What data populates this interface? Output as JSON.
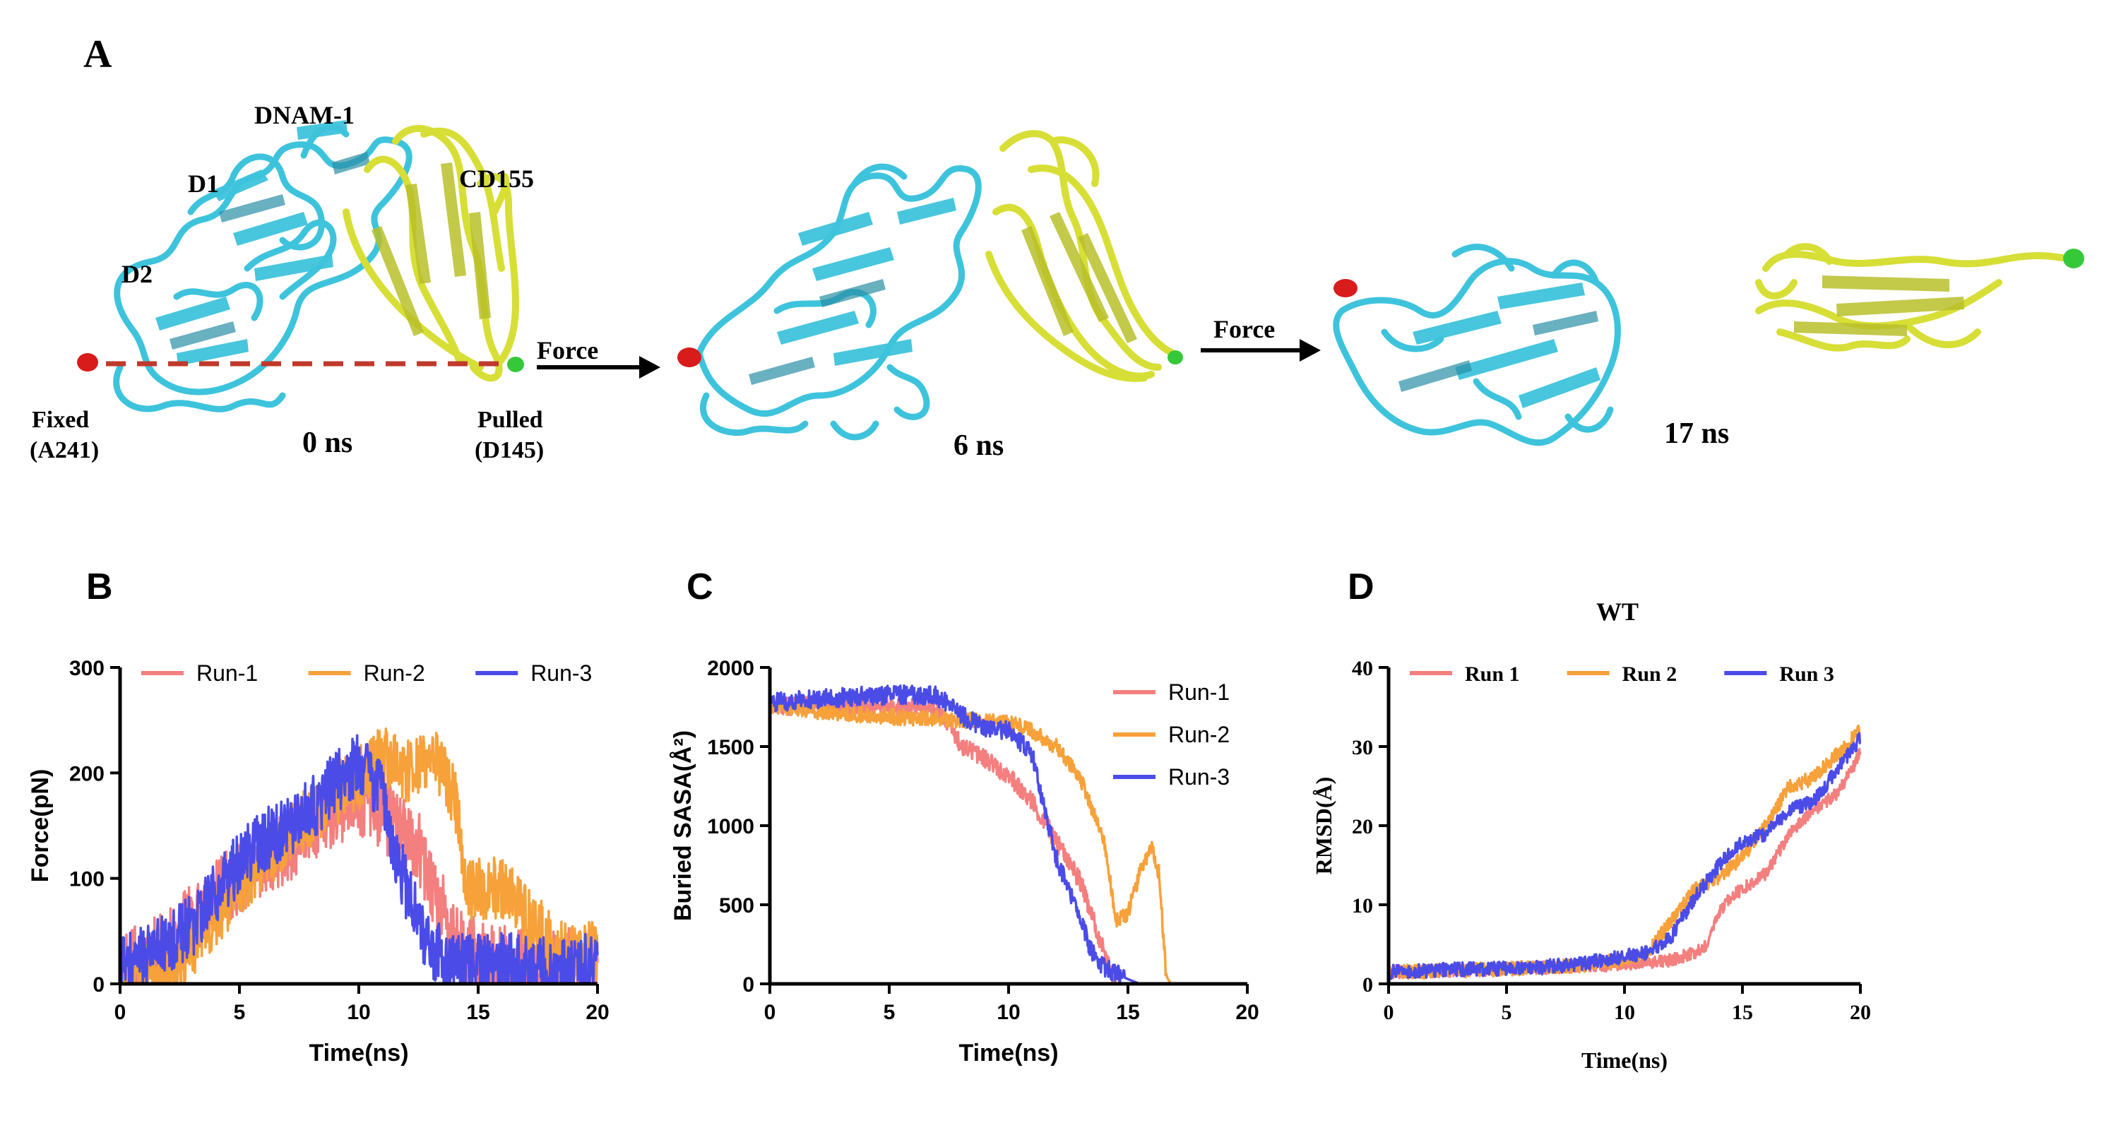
{
  "panel_a": {
    "letter": "A",
    "labels": {
      "dnam1": "DNAM-1",
      "d1": "D1",
      "d2": "D2",
      "cd155": "CD155",
      "fixed": "Fixed",
      "fixed_res": "(A241)",
      "pulled": "Pulled",
      "pulled_res": "(D145)",
      "force": "Force"
    },
    "timepoints": [
      "0 ns",
      "6 ns",
      "17 ns"
    ],
    "colors": {
      "dnam1": "#3ec3dc",
      "cd155": "#dbe23a",
      "fixed_atom": "#d81b1b",
      "pulled_atom": "#35c93a",
      "dashed": "#c0392b"
    }
  },
  "chart_data": [
    {
      "panel": "B",
      "type": "line",
      "title": "",
      "xlabel": "Time(ns)",
      "ylabel": "Force(pN)",
      "xlim": [
        0,
        20
      ],
      "ylim": [
        0,
        300
      ],
      "xticks": [
        "0",
        "5",
        "10",
        "15",
        "20"
      ],
      "yticks": [
        "0",
        "100",
        "200",
        "300"
      ],
      "legend_position": "top",
      "series": [
        {
          "name": "Run-1",
          "color": "#f47f7f",
          "x": [
            0,
            1,
            2,
            3,
            4,
            5,
            6,
            7,
            8,
            9,
            10,
            10.5,
            11,
            12,
            12.5,
            13,
            13.5,
            14,
            15,
            16,
            17,
            18,
            19,
            20
          ],
          "values": [
            10,
            25,
            35,
            60,
            85,
            100,
            120,
            130,
            150,
            165,
            175,
            170,
            160,
            140,
            130,
            100,
            70,
            45,
            25,
            20,
            20,
            20,
            20,
            20
          ],
          "noise": 35
        },
        {
          "name": "Run-2",
          "color": "#f7a13a",
          "x": [
            0,
            1,
            2,
            2.5,
            3,
            4,
            5,
            6,
            7,
            8,
            9,
            10,
            11,
            12,
            13,
            14,
            14.5,
            15,
            16,
            17,
            18,
            19,
            20
          ],
          "values": [
            5,
            10,
            15,
            20,
            35,
            65,
            95,
            115,
            140,
            160,
            180,
            195,
            215,
            200,
            220,
            180,
            90,
            90,
            90,
            65,
            40,
            30,
            30
          ],
          "noise": 30
        },
        {
          "name": "Run-3",
          "color": "#4b4ce8",
          "x": [
            0,
            1,
            2,
            3,
            4,
            5,
            6,
            7,
            8,
            9,
            10,
            11,
            11.5,
            12,
            12.5,
            13,
            13.5,
            14,
            15,
            16,
            17,
            18,
            19,
            20
          ],
          "values": [
            15,
            25,
            40,
            55,
            85,
            115,
            135,
            150,
            165,
            190,
            210,
            180,
            130,
            90,
            60,
            35,
            25,
            20,
            18,
            18,
            18,
            18,
            18,
            18
          ],
          "noise": 30
        }
      ]
    },
    {
      "panel": "C",
      "type": "line",
      "title": "",
      "xlabel": "Time(ns)",
      "ylabel": "Buried SASA(Å²)",
      "xlim": [
        0,
        20
      ],
      "ylim": [
        0,
        2000
      ],
      "xticks": [
        "0",
        "5",
        "10",
        "15",
        "20"
      ],
      "yticks": [
        "0",
        "500",
        "1000",
        "1500",
        "2000"
      ],
      "legend_position": "top-right",
      "series": [
        {
          "name": "Run-1",
          "color": "#f47f7f",
          "x": [
            0,
            2,
            4,
            6,
            7,
            7.5,
            8,
            9,
            10,
            11,
            12,
            13,
            14,
            14.5,
            15,
            20
          ],
          "values": [
            1760,
            1760,
            1760,
            1750,
            1720,
            1650,
            1500,
            1420,
            1320,
            1150,
            900,
            650,
            200,
            0,
            0,
            0
          ],
          "noise": 60
        },
        {
          "name": "Run-2",
          "color": "#f7a13a",
          "x": [
            0,
            2,
            4,
            6,
            8,
            10,
            11,
            12,
            13,
            14,
            14.5,
            15,
            15.5,
            16,
            16.3,
            16.6,
            16.8,
            20
          ],
          "values": [
            1760,
            1720,
            1700,
            1680,
            1670,
            1650,
            1600,
            1500,
            1300,
            900,
            400,
            450,
            700,
            850,
            700,
            50,
            0,
            0
          ],
          "noise": 50
        },
        {
          "name": "Run-3",
          "color": "#4b4ce8",
          "x": [
            0,
            2,
            4,
            6,
            7,
            8,
            9,
            10,
            11,
            11.5,
            12,
            12.5,
            13,
            13.5,
            14,
            15,
            15.5,
            20
          ],
          "values": [
            1780,
            1800,
            1820,
            1830,
            1820,
            1700,
            1620,
            1600,
            1450,
            1100,
            800,
            600,
            400,
            200,
            100,
            30,
            0,
            0
          ],
          "noise": 60
        }
      ]
    },
    {
      "panel": "D",
      "type": "line",
      "title": "WT",
      "xlabel": "Time(ns)",
      "ylabel": "RMSD(Å)",
      "xlim": [
        0,
        20
      ],
      "ylim": [
        0,
        40
      ],
      "xticks": [
        "0",
        "5",
        "10",
        "15",
        "20"
      ],
      "yticks": [
        "0",
        "10",
        "20",
        "30",
        "40"
      ],
      "legend_position": "top",
      "series": [
        {
          "name": "Run 1",
          "color": "#f47f7f",
          "x": [
            0,
            2,
            4,
            6,
            8,
            10,
            12,
            13,
            13.5,
            14,
            14.5,
            15,
            16,
            17,
            18,
            19,
            19.8,
            20
          ],
          "values": [
            1.5,
            1.6,
            1.8,
            2,
            2.2,
            2.5,
            3,
            4,
            5,
            9,
            11,
            12,
            14,
            19,
            22,
            24,
            28,
            30
          ],
          "noise": 0.8
        },
        {
          "name": "Run 2",
          "color": "#f7a13a",
          "x": [
            0,
            2,
            4,
            6,
            8,
            10,
            11,
            12,
            13,
            14,
            15,
            16,
            17,
            18,
            19,
            20
          ],
          "values": [
            1.5,
            1.6,
            1.8,
            2,
            2.3,
            3,
            4,
            8,
            12,
            13.5,
            16,
            20,
            25,
            26,
            29,
            32
          ],
          "noise": 0.9
        },
        {
          "name": "Run 3",
          "color": "#4b4ce8",
          "x": [
            0,
            2,
            4,
            6,
            8,
            10,
            11,
            12,
            13,
            14,
            15,
            16,
            17,
            18,
            19,
            20
          ],
          "values": [
            1.5,
            1.7,
            1.9,
            2,
            2.5,
            3.5,
            4,
            6,
            11,
            15,
            18,
            19,
            22,
            23,
            27,
            31
          ],
          "noise": 0.9
        }
      ]
    }
  ]
}
